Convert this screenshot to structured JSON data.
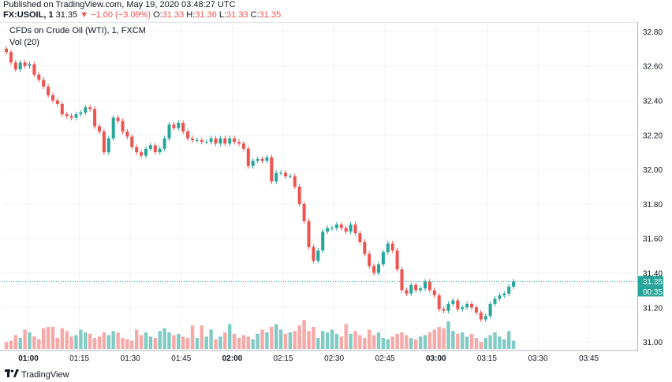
{
  "header": {
    "published": "Published on TradingView.com, May 19, 2020 03:48:27 UTC",
    "symbol": "FX:USOIL, 1",
    "price": "31.35",
    "arrow": "▼",
    "change": "−1.00 (−3.09%)",
    "o_label": "O:",
    "o_value": "31.33",
    "h_label": "H:",
    "h_value": "31.36",
    "l_label": "L:",
    "l_value": "31.33",
    "c_label": "C:",
    "c_value": "31.35"
  },
  "legend": {
    "title": "CFDs on Crude Oil (WTI), 1, FXCM",
    "volume": "Vol (20)"
  },
  "footer": {
    "brand": "TradingView"
  },
  "colors": {
    "up": "#26a69a",
    "down": "#ef5350",
    "vol_up": "#80cbc4",
    "vol_down": "#f7a9a7",
    "last_price": "#26a69a",
    "grid": "#f0f3fa"
  },
  "chart_data": {
    "type": "candlestick",
    "y_ticks": [
      "32.80",
      "32.60",
      "32.40",
      "32.20",
      "32.00",
      "31.80",
      "31.60",
      "31.40",
      "31.20",
      "31.00"
    ],
    "ylim": [
      30.95,
      32.85
    ],
    "x_ticks": [
      "01:00",
      "01:15",
      "01:30",
      "01:45",
      "02:00",
      "02:15",
      "02:30",
      "02:45",
      "03:00",
      "03:15",
      "03:30",
      "03:45"
    ],
    "x_tick_bold": [
      "01:00",
      "02:00",
      "03:00"
    ],
    "last_price_label": "31.35",
    "countdown_label": "00:35",
    "candles_close": [
      32.68,
      32.62,
      32.58,
      32.62,
      32.6,
      32.61,
      32.55,
      32.52,
      32.48,
      32.43,
      32.4,
      32.38,
      32.32,
      32.31,
      32.3,
      32.32,
      32.33,
      32.36,
      32.35,
      32.25,
      32.22,
      32.1,
      32.18,
      32.3,
      32.28,
      32.22,
      32.19,
      32.13,
      32.1,
      32.08,
      32.12,
      32.14,
      32.1,
      32.12,
      32.18,
      32.26,
      32.24,
      32.27,
      32.22,
      32.18,
      32.17,
      32.17,
      32.16,
      32.16,
      32.18,
      32.15,
      32.18,
      32.15,
      32.18,
      32.16,
      32.15,
      32.12,
      32.02,
      32.05,
      32.06,
      32.05,
      32.07,
      31.93,
      31.98,
      31.98,
      31.96,
      31.96,
      31.9,
      31.8,
      31.7,
      31.55,
      31.47,
      31.53,
      31.64,
      31.66,
      31.66,
      31.68,
      31.66,
      31.64,
      31.68,
      31.63,
      31.58,
      31.51,
      31.44,
      31.4,
      31.45,
      31.52,
      31.57,
      31.53,
      31.42,
      31.3,
      31.28,
      31.33,
      31.3,
      31.31,
      31.35,
      31.3,
      31.27,
      31.19,
      31.18,
      31.22,
      31.24,
      31.19,
      31.2,
      31.22,
      31.2,
      31.17,
      31.13,
      31.15,
      31.22,
      31.25,
      31.27,
      31.28,
      31.32,
      31.35
    ],
    "volume": [
      5,
      6,
      10,
      8,
      14,
      12,
      9,
      7,
      15,
      16,
      16,
      8,
      15,
      13,
      9,
      10,
      14,
      12,
      11,
      8,
      9,
      12,
      10,
      13,
      12,
      8,
      7,
      6,
      14,
      10,
      12,
      9,
      8,
      13,
      15,
      12,
      10,
      11,
      9,
      8,
      17,
      8,
      17,
      9,
      14,
      7,
      9,
      12,
      18,
      11,
      8,
      10,
      9,
      7,
      11,
      14,
      12,
      16,
      18,
      14,
      11,
      12,
      13,
      17,
      21,
      13,
      16,
      8,
      13,
      12,
      14,
      11,
      9,
      18,
      11,
      13,
      10,
      8,
      14,
      10,
      12,
      8,
      7,
      9,
      11,
      12,
      10,
      8,
      7,
      9,
      10,
      12,
      14,
      16,
      15,
      20,
      13,
      11,
      12,
      9,
      11,
      8,
      5,
      8,
      10,
      12,
      9,
      7,
      13,
      6
    ],
    "volume_up_flags_note": "",
    "volume_ylim": [
      0,
      60
    ]
  }
}
